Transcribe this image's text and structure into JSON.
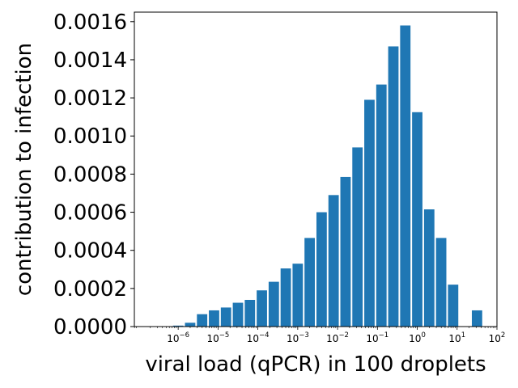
{
  "chart_data": {
    "type": "bar",
    "title": "",
    "xlabel": "viral load (qPCR) in 100 droplets",
    "ylabel": "contribution to infection",
    "xscale": "log10",
    "xlim_log10": [
      -7.1,
      2.0
    ],
    "ylim": [
      0,
      0.00165
    ],
    "grid": false,
    "bar_color": "#1f77b4",
    "bar_width_log10": 0.26,
    "yticks": [
      0,
      0.0002,
      0.0004,
      0.0006,
      0.0008,
      0.001,
      0.0012,
      0.0014,
      0.0016
    ],
    "ytick_labels": [
      "0.0000",
      "0.0002",
      "0.0004",
      "0.0006",
      "0.0008",
      "0.0010",
      "0.0012",
      "0.0014",
      "0.0016"
    ],
    "xticks": [
      {
        "exp": -6,
        "base": "10",
        "sup": "−6"
      },
      {
        "exp": -5,
        "base": "10",
        "sup": "−5"
      },
      {
        "exp": -4,
        "base": "10",
        "sup": "−4"
      },
      {
        "exp": -3,
        "base": "10",
        "sup": "−3"
      },
      {
        "exp": -2,
        "base": "10",
        "sup": "−2"
      },
      {
        "exp": -1,
        "base": "10",
        "sup": "−1"
      },
      {
        "exp": 0,
        "base": "10",
        "sup": "0"
      },
      {
        "exp": 1,
        "base": "10",
        "sup": "1"
      },
      {
        "exp": 2,
        "base": "10",
        "sup": "2"
      }
    ],
    "bars": [
      {
        "log10_x": -6.0,
        "value": 5e-06
      },
      {
        "log10_x": -5.7,
        "value": 2e-05
      },
      {
        "log10_x": -5.4,
        "value": 6.5e-05
      },
      {
        "log10_x": -5.1,
        "value": 8.5e-05
      },
      {
        "log10_x": -4.8,
        "value": 0.0001
      },
      {
        "log10_x": -4.5,
        "value": 0.000125
      },
      {
        "log10_x": -4.2,
        "value": 0.00014
      },
      {
        "log10_x": -3.9,
        "value": 0.00019
      },
      {
        "log10_x": -3.6,
        "value": 0.000235
      },
      {
        "log10_x": -3.3,
        "value": 0.000305
      },
      {
        "log10_x": -3.0,
        "value": 0.00033
      },
      {
        "log10_x": -2.7,
        "value": 0.000465
      },
      {
        "log10_x": -2.4,
        "value": 0.0006
      },
      {
        "log10_x": -2.1,
        "value": 0.00069
      },
      {
        "log10_x": -1.8,
        "value": 0.000785
      },
      {
        "log10_x": -1.5,
        "value": 0.00094
      },
      {
        "log10_x": -1.2,
        "value": 0.00119
      },
      {
        "log10_x": -0.9,
        "value": 0.00127
      },
      {
        "log10_x": -0.6,
        "value": 0.00147
      },
      {
        "log10_x": -0.3,
        "value": 0.00158
      },
      {
        "log10_x": 0.0,
        "value": 0.001125
      },
      {
        "log10_x": 0.3,
        "value": 0.000615
      },
      {
        "log10_x": 0.6,
        "value": 0.000465
      },
      {
        "log10_x": 0.9,
        "value": 0.00022
      },
      {
        "log10_x": 1.5,
        "value": 8.5e-05
      }
    ]
  }
}
